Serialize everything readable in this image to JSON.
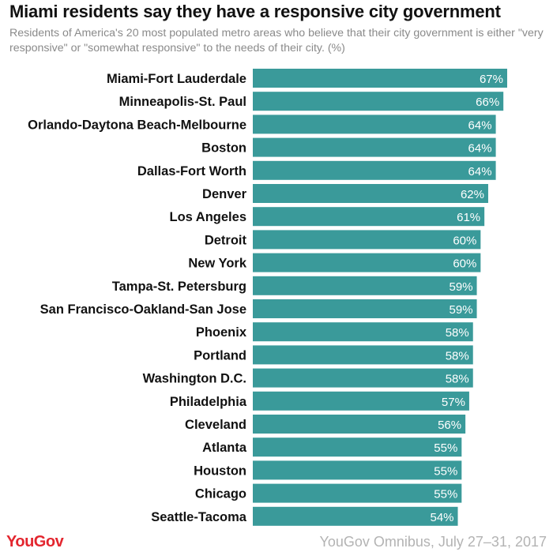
{
  "header": {
    "title": "Miami residents say they have a responsive city government",
    "subtitle": "Residents of America's 20 most populated metro areas who believe that their city government is either \"very responsive\" or \"somewhat responsive\" to the needs of their city. (%)"
  },
  "footer": {
    "logo": "YouGov",
    "source": "YouGov Omnibus, July 27–31, 2017"
  },
  "colors": {
    "bar": "#3a9a9a",
    "label": "#111111",
    "value_text": "#ffffff",
    "logo": "#e3262f"
  },
  "chart_data": {
    "type": "bar",
    "orientation": "horizontal",
    "unit": "%",
    "categories": [
      "Miami-Fort Lauderdale",
      "Minneapolis-St. Paul",
      "Orlando-Daytona Beach-Melbourne",
      "Boston",
      "Dallas-Fort Worth",
      "Denver",
      "Los Angeles",
      "Detroit",
      "New York",
      "Tampa-St. Petersburg",
      "San Francisco-Oakland-San Jose",
      "Phoenix",
      "Portland",
      "Washington D.C.",
      "Philadelphia",
      "Cleveland",
      "Atlanta",
      "Houston",
      "Chicago",
      "Seattle-Tacoma"
    ],
    "values": [
      67,
      66,
      64,
      64,
      64,
      62,
      61,
      60,
      60,
      59,
      59,
      58,
      58,
      58,
      57,
      56,
      55,
      55,
      55,
      54
    ],
    "xlim": [
      0,
      67
    ],
    "grid": false,
    "legend": "none"
  }
}
